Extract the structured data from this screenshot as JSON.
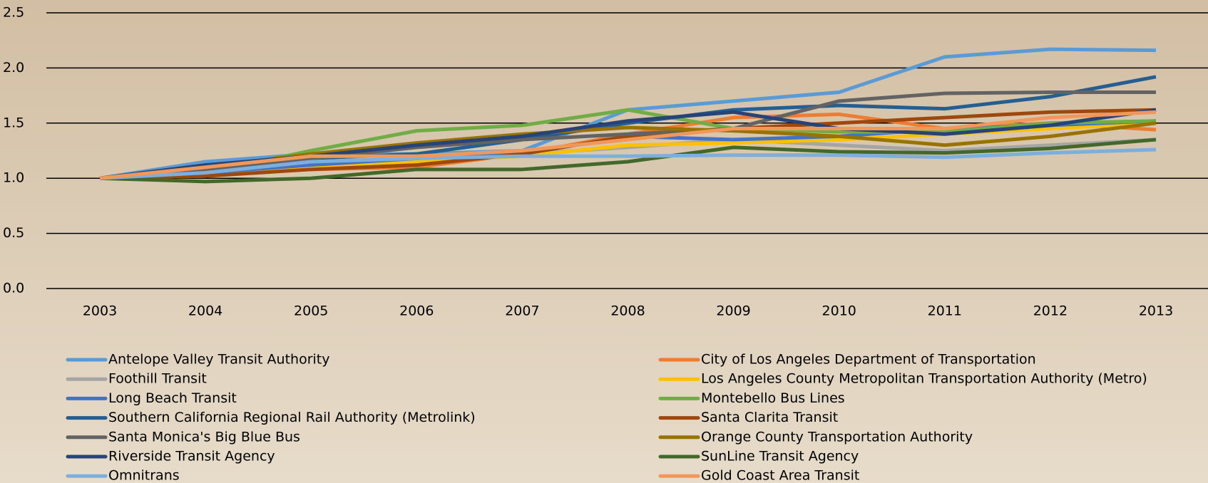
{
  "chart_data": {
    "type": "line",
    "categories": [
      "2003",
      "2004",
      "2005",
      "2006",
      "2007",
      "2008",
      "2009",
      "2010",
      "2011",
      "2012",
      "2013"
    ],
    "ylim": [
      0,
      2.5
    ],
    "yticks": [
      {
        "value": 0,
        "label": "0.0"
      },
      0.5,
      {
        "value": 1,
        "label": "1.0"
      },
      1.5,
      {
        "value": 2,
        "label": "2.0"
      },
      2.5
    ],
    "grid": true,
    "legend": "bottom",
    "series": [
      {
        "name": "Antelope Valley Transit Authority",
        "color": "#5b9bd5",
        "values": [
          1.0,
          1.15,
          1.22,
          1.22,
          1.25,
          1.62,
          1.7,
          1.78,
          2.1,
          2.17,
          2.16
        ]
      },
      {
        "name": "City of Los Angeles Department of Transportation",
        "color": "#ed7d31",
        "values": [
          1.0,
          1.05,
          1.08,
          1.1,
          1.22,
          1.4,
          1.55,
          1.58,
          1.45,
          1.5,
          1.44
        ]
      },
      {
        "name": "Foothill Transit",
        "color": "#a5a5a5",
        "values": [
          1.0,
          1.05,
          1.1,
          1.18,
          1.22,
          1.28,
          1.35,
          1.3,
          1.25,
          1.3,
          1.35
        ]
      },
      {
        "name": "Los Angeles County Metropolitan Transportation Authority (Metro)",
        "color": "#ffc000",
        "values": [
          1.0,
          1.02,
          1.1,
          1.15,
          1.2,
          1.3,
          1.32,
          1.35,
          1.4,
          1.45,
          1.5
        ]
      },
      {
        "name": "Long Beach Transit",
        "color": "#4472c4",
        "values": [
          1.0,
          1.05,
          1.12,
          1.18,
          1.22,
          1.38,
          1.35,
          1.38,
          1.45,
          1.48,
          1.52
        ]
      },
      {
        "name": "Montebello Bus Lines",
        "color": "#70ad47",
        "values": [
          1.0,
          1.05,
          1.25,
          1.43,
          1.48,
          1.62,
          1.45,
          1.42,
          1.42,
          1.5,
          1.52
        ]
      },
      {
        "name": "Southern California Regional Rail Authority (Metrolink)",
        "color": "#255e91",
        "values": [
          1.0,
          1.1,
          1.18,
          1.22,
          1.35,
          1.5,
          1.62,
          1.66,
          1.63,
          1.74,
          1.92
        ]
      },
      {
        "name": "Santa Clarita Transit",
        "color": "#9e480e",
        "values": [
          1.0,
          1.02,
          1.08,
          1.12,
          1.22,
          1.38,
          1.45,
          1.5,
          1.55,
          1.6,
          1.62
        ]
      },
      {
        "name": "Santa Monica's Big Blue Bus",
        "color": "#636363",
        "values": [
          1.0,
          1.08,
          1.18,
          1.28,
          1.35,
          1.4,
          1.45,
          1.7,
          1.77,
          1.78,
          1.78
        ]
      },
      {
        "name": "Orange County Transportation Authority",
        "color": "#997300",
        "values": [
          1.0,
          1.1,
          1.22,
          1.32,
          1.4,
          1.46,
          1.43,
          1.38,
          1.3,
          1.38,
          1.5
        ]
      },
      {
        "name": "Riverside Transit Agency",
        "color": "#264478",
        "values": [
          1.0,
          1.12,
          1.2,
          1.3,
          1.38,
          1.52,
          1.6,
          1.45,
          1.4,
          1.48,
          1.62
        ]
      },
      {
        "name": "SunLine Transit Agency",
        "color": "#43682b",
        "values": [
          1.0,
          0.97,
          1.0,
          1.08,
          1.08,
          1.15,
          1.28,
          1.24,
          1.23,
          1.27,
          1.35
        ]
      },
      {
        "name": "Omnitrans",
        "color": "#7cafdd",
        "values": [
          1.0,
          1.05,
          1.15,
          1.18,
          1.2,
          1.2,
          1.21,
          1.21,
          1.19,
          1.23,
          1.26
        ]
      },
      {
        "name": "Gold Coast Area Transit",
        "color": "#f1975a",
        "values": [
          1.0,
          1.1,
          1.2,
          1.2,
          1.25,
          1.35,
          1.45,
          1.45,
          1.45,
          1.55,
          1.6
        ]
      }
    ]
  }
}
